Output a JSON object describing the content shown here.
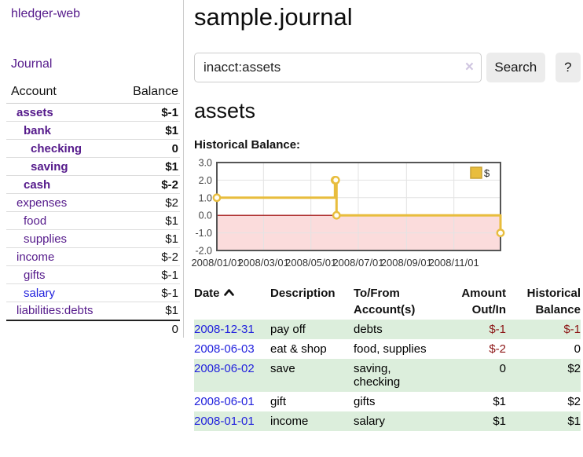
{
  "app": {
    "title": "hledger-web",
    "nav_journal": "Journal"
  },
  "sidebar": {
    "table_headers": {
      "account": "Account",
      "balance": "Balance"
    },
    "accounts": [
      {
        "name": "assets",
        "balance": "$-1",
        "depth": 1,
        "bold": true,
        "neg": "strong"
      },
      {
        "name": "bank",
        "balance": "$1",
        "depth": 2,
        "bold": true,
        "neg": ""
      },
      {
        "name": "checking",
        "balance": "0",
        "depth": 3,
        "bold": true,
        "neg": ""
      },
      {
        "name": "saving",
        "balance": "$1",
        "depth": 3,
        "bold": true,
        "neg": ""
      },
      {
        "name": "cash",
        "balance": "$-2",
        "depth": 2,
        "bold": true,
        "neg": "strong"
      },
      {
        "name": "expenses",
        "balance": "$2",
        "depth": 1,
        "bold": false,
        "neg": ""
      },
      {
        "name": "food",
        "balance": "$1",
        "depth": 2,
        "bold": false,
        "neg": ""
      },
      {
        "name": "supplies",
        "balance": "$1",
        "depth": 2,
        "bold": false,
        "neg": ""
      },
      {
        "name": "income",
        "balance": "$-2",
        "depth": 1,
        "bold": false,
        "neg": "soft"
      },
      {
        "name": "gifts",
        "balance": "$-1",
        "depth": 2,
        "bold": false,
        "neg": "soft"
      },
      {
        "name": "salary",
        "balance": "$-1",
        "depth": 2,
        "bold": false,
        "neg": "soft",
        "blue": true
      },
      {
        "name": "liabilities:debts",
        "balance": "$1",
        "depth": 1,
        "bold": false,
        "neg": ""
      }
    ],
    "total": "0"
  },
  "main": {
    "title": "sample.journal",
    "search": {
      "value": "inacct:assets",
      "clear_icon": "×",
      "button": "Search",
      "help_button": "?"
    },
    "account_heading": "assets",
    "chart_heading": "Historical Balance:"
  },
  "chart_data": {
    "type": "line",
    "title": "Historical Balance",
    "step": true,
    "series": [
      {
        "name": "$",
        "color": "#e8bd3d",
        "points": [
          [
            "2008-01-01",
            1
          ],
          [
            "2008-06-01",
            2
          ],
          [
            "2008-06-02",
            2
          ],
          [
            "2008-06-03",
            0
          ],
          [
            "2008-12-31",
            -1
          ]
        ]
      }
    ],
    "x_range": [
      "2008-01-01",
      "2008-12-31"
    ],
    "x_tick_labels": [
      "2008/01/01",
      "2008/03/01",
      "2008/05/01",
      "2008/07/01",
      "2008/09/01",
      "2008/11/01"
    ],
    "y_ticks": [
      3.0,
      2.0,
      1.0,
      0.0,
      -1.0,
      -2.0
    ],
    "ylim": [
      -2,
      3
    ],
    "legend": {
      "label": "$",
      "position": "top-right"
    },
    "grid": true,
    "negative_region_color": "#fbdcdc",
    "zero_line_color": "#990000"
  },
  "transactions": {
    "headers": {
      "date": "Date",
      "description": "Description",
      "accounts": "To/From Account(s)",
      "amount": "Amount Out/In",
      "balance": "Historical Balance"
    },
    "sort_icon": "chevron-up",
    "rows": [
      {
        "date": "2008-12-31",
        "description": "pay off",
        "accounts": "debts",
        "amount": "$-1",
        "balance": "$-1",
        "amount_neg": true,
        "balance_neg": true
      },
      {
        "date": "2008-06-03",
        "description": "eat & shop",
        "accounts": "food, supplies",
        "amount": "$-2",
        "balance": "0",
        "amount_neg": true,
        "balance_neg": false
      },
      {
        "date": "2008-06-02",
        "description": "save",
        "accounts": "saving,\nchecking",
        "amount": "0",
        "balance": "$2",
        "amount_neg": false,
        "balance_neg": false
      },
      {
        "date": "2008-06-01",
        "description": "gift",
        "accounts": "gifts",
        "amount": "$1",
        "balance": "$2",
        "amount_neg": false,
        "balance_neg": false
      },
      {
        "date": "2008-01-01",
        "description": "income",
        "accounts": "salary",
        "amount": "$1",
        "balance": "$1",
        "amount_neg": false,
        "balance_neg": false
      }
    ]
  }
}
